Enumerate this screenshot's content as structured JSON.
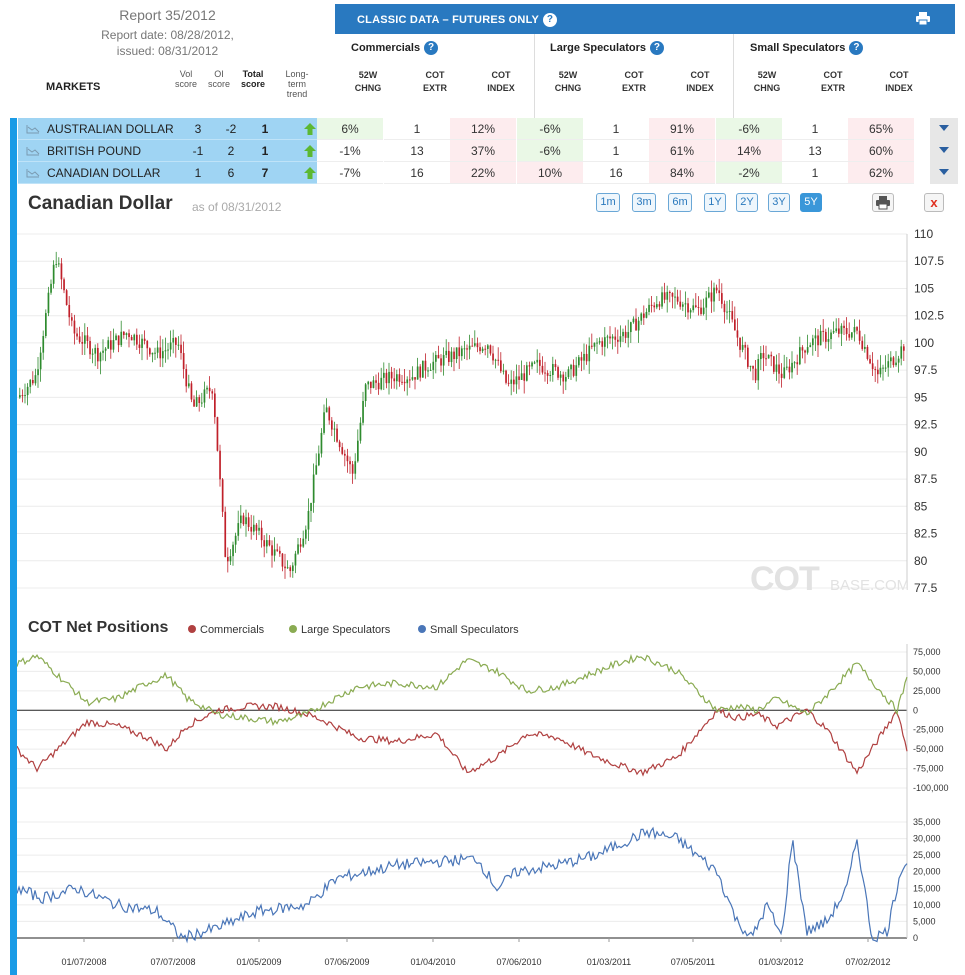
{
  "report": {
    "title": "Report 35/2012",
    "report_date": "Report date: 08/28/2012,",
    "issued_date": "issued: 08/31/2012"
  },
  "table": {
    "markets_label": "MARKETS",
    "score_headers": [
      {
        "lines": [
          "Vol",
          "score"
        ],
        "bold": false
      },
      {
        "lines": [
          "OI",
          "score"
        ],
        "bold": false
      },
      {
        "lines": [
          "Total",
          "score"
        ],
        "bold": true
      },
      {
        "lines": [
          "Long-",
          "term",
          "trend"
        ],
        "bold": false
      }
    ],
    "classic_title": "CLASSIC DATA – FUTURES ONLY",
    "groups": [
      "Commercials",
      "Large Speculators",
      "Small Speculators"
    ],
    "column_headers": [
      [
        "52W",
        "CHNG"
      ],
      [
        "COT",
        "EXTR"
      ],
      [
        "COT",
        "INDEX"
      ]
    ],
    "rows": [
      {
        "name": "AUSTRALIAN DOLLAR",
        "vol": "3",
        "oi": "-2",
        "total": "1",
        "trend": "up",
        "cells": [
          "6%",
          "1",
          "12%",
          "-6%",
          "1",
          "91%",
          "-6%",
          "1",
          "65%"
        ]
      },
      {
        "name": "BRITISH POUND",
        "vol": "-1",
        "oi": "2",
        "total": "1",
        "trend": "up",
        "cells": [
          "-1%",
          "13",
          "37%",
          "-6%",
          "1",
          "61%",
          "14%",
          "13",
          "60%"
        ]
      },
      {
        "name": "CANADIAN DOLLAR",
        "vol": "1",
        "oi": "6",
        "total": "7",
        "trend": "up",
        "cells": [
          "-7%",
          "16",
          "22%",
          "10%",
          "16",
          "84%",
          "-2%",
          "1",
          "62%"
        ]
      }
    ]
  },
  "chart_header": {
    "title": "Canadian Dollar",
    "as_of": "as of 08/31/2012",
    "ranges": [
      "1m",
      "3m",
      "6m",
      "1Y",
      "2Y",
      "3Y",
      "5Y"
    ],
    "active_range": "5Y",
    "close_label": "x"
  },
  "watermark": {
    "main": "COT",
    "sub": "BASE.COM"
  },
  "cot_header": {
    "title": "COT Net Positions",
    "legend": [
      {
        "name": "Commercials",
        "color": "#b04040"
      },
      {
        "name": "Large Speculators",
        "color": "#8aab52"
      },
      {
        "name": "Small Speculators",
        "color": "#4a76b8"
      }
    ]
  },
  "colors": {
    "accent": "#2979c0",
    "row_highlight": "#9fd4f3",
    "candle_up": "#2e8b2e",
    "candle_down": "#c0202a",
    "positive_cell": "#eaf8e6",
    "negative_cell": "#fdecee"
  },
  "chart_data": [
    {
      "type": "candlestick",
      "y_ticks": [
        "110",
        "107.5",
        "105",
        "102.5",
        "100",
        "97.5",
        "95",
        "92.5",
        "90",
        "87.5",
        "85",
        "82.5",
        "80",
        "77.5"
      ],
      "ylim": [
        77.5,
        110
      ],
      "anchors": [
        [
          0,
          95
        ],
        [
          18,
          97
        ],
        [
          38,
          108
        ],
        [
          55,
          101
        ],
        [
          80,
          99
        ],
        [
          110,
          101
        ],
        [
          140,
          99
        ],
        [
          160,
          100
        ],
        [
          175,
          94
        ],
        [
          195,
          96
        ],
        [
          208,
          80
        ],
        [
          225,
          84
        ],
        [
          245,
          82
        ],
        [
          272,
          79
        ],
        [
          290,
          84
        ],
        [
          308,
          94
        ],
        [
          335,
          88
        ],
        [
          348,
          96
        ],
        [
          378,
          97
        ],
        [
          395,
          97
        ],
        [
          410,
          98
        ],
        [
          440,
          99
        ],
        [
          470,
          100
        ],
        [
          490,
          96
        ],
        [
          520,
          98
        ],
        [
          550,
          97
        ],
        [
          580,
          100
        ],
        [
          610,
          101
        ],
        [
          640,
          104
        ],
        [
          660,
          104
        ],
        [
          680,
          103
        ],
        [
          700,
          105
        ],
        [
          722,
          100
        ],
        [
          737,
          97
        ],
        [
          745,
          99
        ],
        [
          765,
          97
        ],
        [
          790,
          100
        ],
        [
          820,
          101
        ],
        [
          840,
          101
        ],
        [
          860,
          97
        ],
        [
          880,
          99
        ],
        [
          895,
          101
        ]
      ]
    },
    {
      "type": "line",
      "title": "COT Net Positions",
      "y_ticks_upper": [
        "75,000",
        "50,000",
        "25,000",
        "0",
        "-25,000",
        "-50,000",
        "-75,000",
        "-100,000"
      ],
      "y_ticks_lower": [
        "35,000",
        "30,000",
        "25,000",
        "20,000",
        "15,000",
        "10,000",
        "5,000",
        "0"
      ],
      "x_labels": [
        "01/07/2008",
        "07/07/2008",
        "01/05/2009",
        "07/06/2009",
        "01/04/2010",
        "07/06/2010",
        "01/03/2011",
        "07/05/2011",
        "01/03/2012",
        "07/02/2012"
      ],
      "series": [
        {
          "name": "Commercials",
          "anchors": [
            [
              0,
              -50000
            ],
            [
              20,
              -75000
            ],
            [
              45,
              -45000
            ],
            [
              70,
              -15000
            ],
            [
              100,
              -20000
            ],
            [
              130,
              -35000
            ],
            [
              150,
              -50000
            ],
            [
              170,
              -20000
            ],
            [
              200,
              0
            ],
            [
              230,
              5000
            ],
            [
              260,
              5000
            ],
            [
              290,
              -5000
            ],
            [
              310,
              -15000
            ],
            [
              340,
              -35000
            ],
            [
              380,
              -40000
            ],
            [
              420,
              -30000
            ],
            [
              450,
              -80000
            ],
            [
              480,
              -60000
            ],
            [
              510,
              -30000
            ],
            [
              540,
              -35000
            ],
            [
              570,
              -55000
            ],
            [
              600,
              -70000
            ],
            [
              625,
              -80000
            ],
            [
              660,
              -60000
            ],
            [
              680,
              -30000
            ],
            [
              700,
              0
            ],
            [
              720,
              -10000
            ],
            [
              740,
              -5000
            ],
            [
              760,
              -20000
            ],
            [
              790,
              0
            ],
            [
              810,
              -25000
            ],
            [
              840,
              -80000
            ],
            [
              860,
              -40000
            ],
            [
              880,
              0
            ],
            [
              895,
              -75000
            ]
          ]
        },
        {
          "name": "Large Speculators",
          "anchors": [
            [
              0,
              60000
            ],
            [
              20,
              70000
            ],
            [
              45,
              40000
            ],
            [
              70,
              10000
            ],
            [
              100,
              15000
            ],
            [
              130,
              35000
            ],
            [
              150,
              45000
            ],
            [
              170,
              15000
            ],
            [
              200,
              -5000
            ],
            [
              230,
              -10000
            ],
            [
              260,
              -15000
            ],
            [
              290,
              -5000
            ],
            [
              310,
              10000
            ],
            [
              340,
              30000
            ],
            [
              380,
              35000
            ],
            [
              420,
              30000
            ],
            [
              450,
              65000
            ],
            [
              480,
              50000
            ],
            [
              510,
              25000
            ],
            [
              540,
              30000
            ],
            [
              570,
              45000
            ],
            [
              600,
              60000
            ],
            [
              625,
              70000
            ],
            [
              660,
              50000
            ],
            [
              680,
              25000
            ],
            [
              700,
              0
            ],
            [
              720,
              5000
            ],
            [
              740,
              0
            ],
            [
              760,
              15000
            ],
            [
              790,
              -5000
            ],
            [
              810,
              20000
            ],
            [
              840,
              60000
            ],
            [
              860,
              30000
            ],
            [
              880,
              0
            ],
            [
              895,
              60000
            ]
          ]
        },
        {
          "name": "Small Speculators",
          "anchors": [
            [
              0,
              15000
            ],
            [
              25,
              12000
            ],
            [
              60,
              15000
            ],
            [
              100,
              10000
            ],
            [
              140,
              8000
            ],
            [
              165,
              0
            ],
            [
              200,
              3000
            ],
            [
              240,
              8000
            ],
            [
              290,
              10000
            ],
            [
              320,
              18000
            ],
            [
              350,
              20000
            ],
            [
              380,
              22000
            ],
            [
              420,
              23000
            ],
            [
              460,
              24000
            ],
            [
              480,
              15000
            ],
            [
              500,
              20000
            ],
            [
              540,
              22000
            ],
            [
              580,
              25000
            ],
            [
              600,
              28000
            ],
            [
              630,
              32000
            ],
            [
              660,
              30000
            ],
            [
              680,
              25000
            ],
            [
              700,
              20000
            ],
            [
              720,
              5000
            ],
            [
              735,
              0
            ],
            [
              750,
              10000
            ],
            [
              765,
              0
            ],
            [
              775,
              30000
            ],
            [
              790,
              2000
            ],
            [
              810,
              5000
            ],
            [
              830,
              15000
            ],
            [
              840,
              30000
            ],
            [
              855,
              0
            ],
            [
              870,
              2000
            ],
            [
              885,
              22000
            ],
            [
              895,
              23000
            ]
          ]
        }
      ]
    }
  ]
}
